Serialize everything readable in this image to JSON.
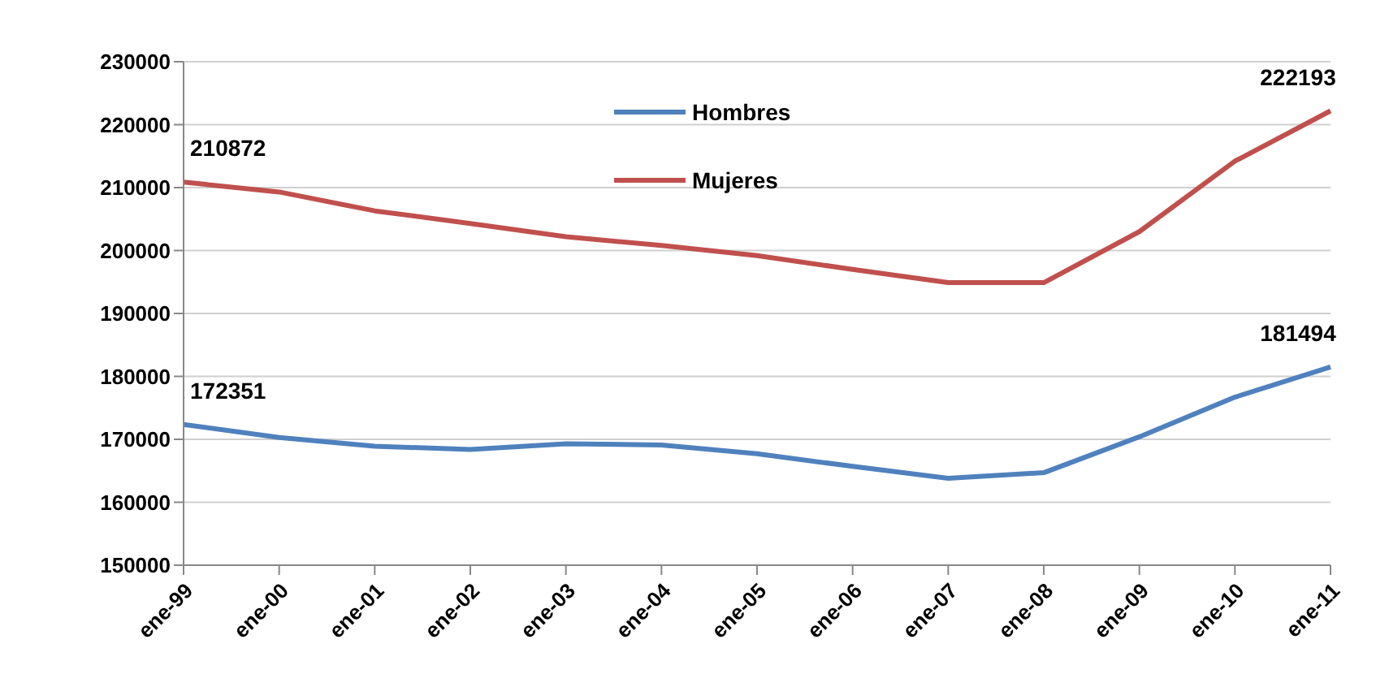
{
  "chart_data": {
    "type": "line",
    "categories": [
      "ene-99",
      "ene-00",
      "ene-01",
      "ene-02",
      "ene-03",
      "ene-04",
      "ene-05",
      "ene-06",
      "ene-07",
      "ene-08",
      "ene-09",
      "ene-10",
      "ene-11"
    ],
    "series": [
      {
        "name": "Hombres",
        "color": "#4f81bd",
        "values": [
          172351,
          170300,
          168900,
          168400,
          169300,
          169100,
          167700,
          165700,
          163800,
          164700,
          170400,
          176700,
          181494
        ],
        "value_labels": [
          "172351",
          null,
          null,
          null,
          null,
          null,
          null,
          null,
          null,
          null,
          null,
          null,
          "181494"
        ]
      },
      {
        "name": "Mujeres",
        "color": "#c0504d",
        "values": [
          210872,
          209300,
          206300,
          204300,
          202200,
          200800,
          199200,
          197000,
          194900,
          194900,
          203000,
          214200,
          222193
        ],
        "value_labels": [
          "210872",
          null,
          null,
          null,
          null,
          null,
          null,
          null,
          null,
          null,
          null,
          null,
          "222193"
        ]
      }
    ],
    "ylim": [
      150000,
      230000
    ],
    "yticks": [
      150000,
      160000,
      170000,
      180000,
      190000,
      200000,
      210000,
      220000,
      230000
    ],
    "grid": "y",
    "legend": "top",
    "marker": "none",
    "line_style": "solid"
  }
}
